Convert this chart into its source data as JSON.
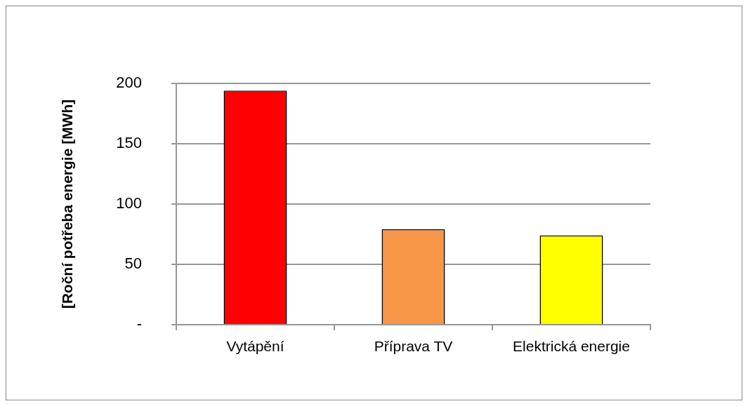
{
  "chart_data": {
    "type": "bar",
    "categories": [
      "Vytápění",
      "Příprava TV",
      "Elektrická energie"
    ],
    "values": [
      194,
      79,
      74
    ],
    "colors": [
      "#ff0000",
      "#f79646",
      "#ffff00"
    ],
    "ylabel": "[Roční potřeba energie [MWh]",
    "ylim": [
      0,
      200
    ],
    "yticks": [
      {
        "value": 0,
        "label": "-"
      },
      50,
      100,
      150,
      200
    ],
    "grid": "y"
  }
}
